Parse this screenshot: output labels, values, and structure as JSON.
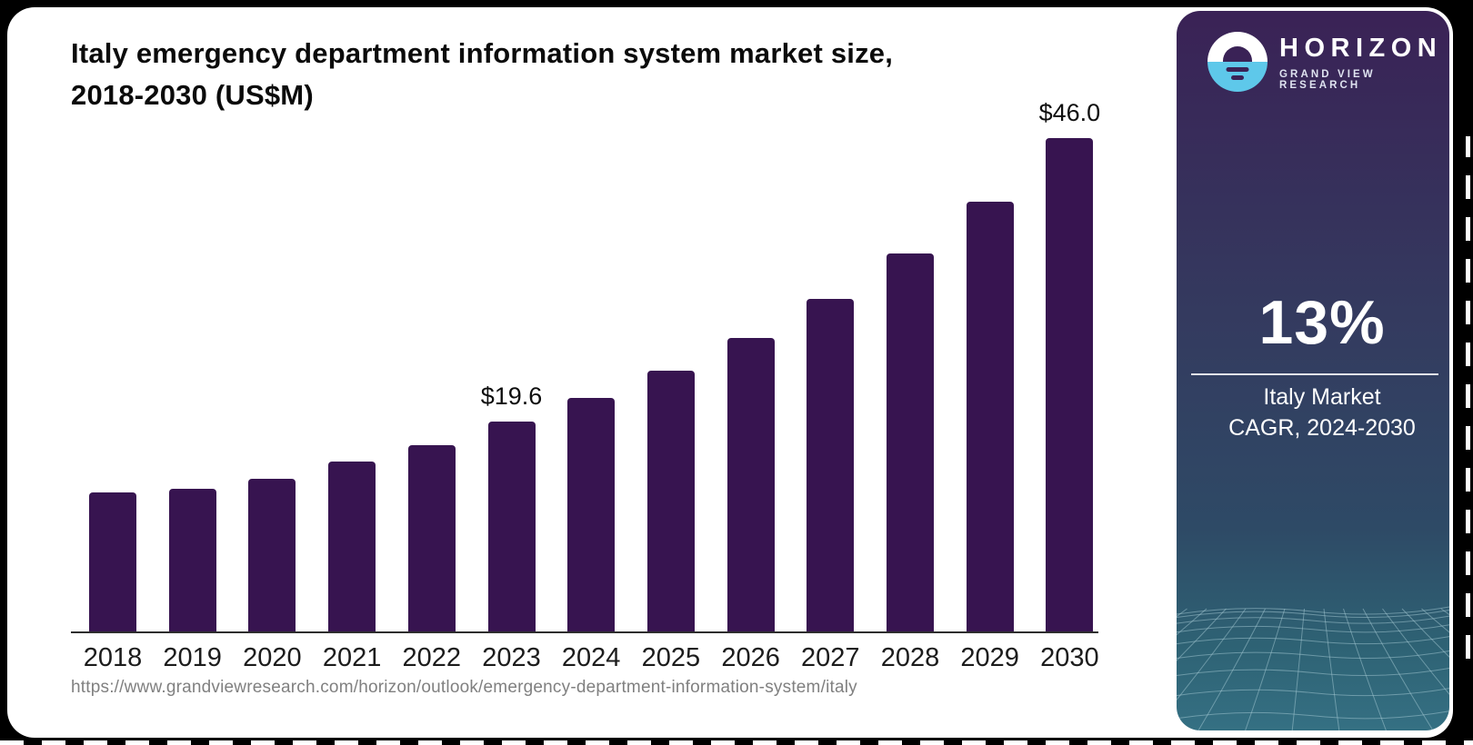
{
  "title": {
    "line1": "Italy emergency department information system market size,",
    "line2": "2018-2030 (US$M)"
  },
  "source_url": "https://www.grandviewresearch.com/horizon/outlook/emergency-department-information-system/italy",
  "chart_data": {
    "type": "bar",
    "title": "Italy emergency department information system market size, 2018-2030 (US$M)",
    "categories": [
      "2018",
      "2019",
      "2020",
      "2021",
      "2022",
      "2023",
      "2024",
      "2025",
      "2026",
      "2027",
      "2028",
      "2029",
      "2030"
    ],
    "values": [
      13.0,
      13.3,
      14.2,
      15.8,
      17.4,
      19.6,
      21.8,
      24.3,
      27.4,
      31.0,
      35.2,
      40.1,
      46.0
    ],
    "unit": "US$M",
    "ylim": [
      0,
      48
    ],
    "grid": false,
    "legend": "none",
    "bar_color": "#371450",
    "labeled_points": [
      {
        "category": "2023",
        "label": "$19.6"
      },
      {
        "category": "2030",
        "label": "$46.0"
      }
    ]
  },
  "sidebar": {
    "brand": {
      "name": "HORIZON",
      "tagline": "GRAND VIEW RESEARCH",
      "logo_icon": "horizon-sun-over-water"
    },
    "stat": {
      "value": "13%",
      "label_line1": "Italy Market",
      "label_line2": "CAGR, 2024-2030"
    },
    "colors": {
      "panel_top": "#3a2256",
      "panel_mid": "#343a5f",
      "panel_bottom": "#357083",
      "logo_blue": "#5ec8ea"
    }
  }
}
